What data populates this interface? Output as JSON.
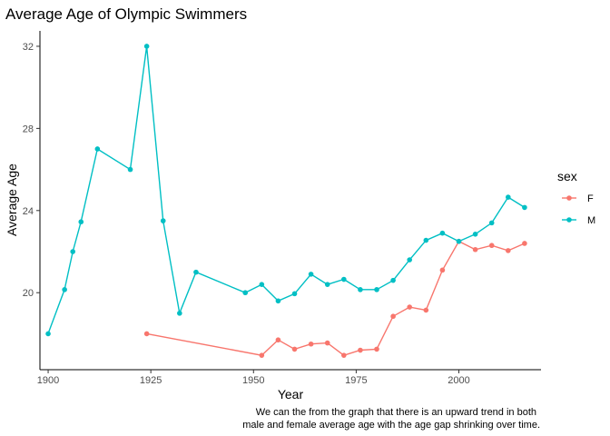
{
  "chart_data": {
    "type": "line",
    "title": "Average Age of Olympic Swimmers",
    "xlabel": "Year",
    "ylabel": "Average Age",
    "xlim": [
      1898,
      2020
    ],
    "ylim": [
      16.25,
      32.75
    ],
    "xticks": [
      1900,
      1925,
      1950,
      1975,
      2000
    ],
    "yticks": [
      20,
      24,
      28,
      32
    ],
    "grid": false,
    "legend": {
      "title": "sex",
      "position": "right"
    },
    "caption": [
      "We can the from the graph that there is an upward trend in both",
      "male and female average age with the age gap shrinking over time."
    ],
    "series": [
      {
        "name": "F",
        "color": "#F8766D",
        "points": [
          [
            1924,
            18.0
          ],
          [
            1952,
            16.95
          ],
          [
            1956,
            17.7
          ],
          [
            1960,
            17.25
          ],
          [
            1964,
            17.5
          ],
          [
            1968,
            17.55
          ],
          [
            1972,
            16.95
          ],
          [
            1976,
            17.2
          ],
          [
            1980,
            17.25
          ],
          [
            1984,
            18.85
          ],
          [
            1988,
            19.3
          ],
          [
            1992,
            19.15
          ],
          [
            1996,
            21.1
          ],
          [
            2000,
            22.5
          ],
          [
            2004,
            22.1
          ],
          [
            2008,
            22.3
          ],
          [
            2012,
            22.05
          ],
          [
            2016,
            22.4
          ]
        ]
      },
      {
        "name": "M",
        "color": "#00BFC4",
        "points": [
          [
            1900,
            18.0
          ],
          [
            1904,
            20.15
          ],
          [
            1906,
            22.0
          ],
          [
            1908,
            23.45
          ],
          [
            1912,
            27.0
          ],
          [
            1920,
            26.0
          ],
          [
            1924,
            32.0
          ],
          [
            1928,
            23.5
          ],
          [
            1932,
            19.0
          ],
          [
            1936,
            21.0
          ],
          [
            1948,
            20.0
          ],
          [
            1952,
            20.4
          ],
          [
            1956,
            19.6
          ],
          [
            1960,
            19.95
          ],
          [
            1964,
            20.9
          ],
          [
            1968,
            20.4
          ],
          [
            1972,
            20.65
          ],
          [
            1976,
            20.15
          ],
          [
            1980,
            20.15
          ],
          [
            1984,
            20.6
          ],
          [
            1988,
            21.6
          ],
          [
            1992,
            22.55
          ],
          [
            1996,
            22.9
          ],
          [
            2000,
            22.5
          ],
          [
            2004,
            22.85
          ],
          [
            2008,
            23.4
          ],
          [
            2012,
            24.65
          ],
          [
            2016,
            24.15
          ]
        ]
      }
    ]
  }
}
